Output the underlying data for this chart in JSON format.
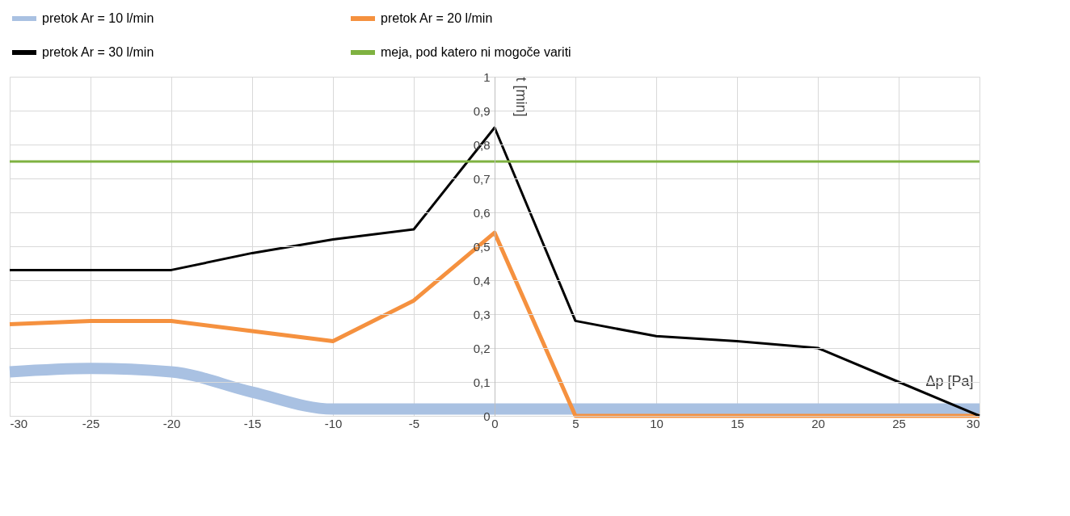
{
  "chart_data": {
    "type": "line",
    "xlabel": "Δp [Pa]",
    "ylabel": "t [min]",
    "x": [
      -30,
      -25,
      -20,
      -15,
      -10,
      -5,
      0,
      5,
      10,
      15,
      20,
      25,
      30
    ],
    "series": [
      {
        "name": "pretok Ar = 10 l/min",
        "color": "#a9c1e2",
        "values": [
          0.13,
          0.14,
          0.13,
          0.07,
          0.02,
          0.02,
          0.02,
          0.02,
          0.02,
          0.02,
          0.02,
          0.02,
          0.02
        ]
      },
      {
        "name": "pretok Ar = 20 l/min",
        "color": "#f5913f",
        "values": [
          0.27,
          0.28,
          0.28,
          0.25,
          0.22,
          0.34,
          0.54,
          0,
          0,
          0,
          0,
          0,
          0
        ]
      },
      {
        "name": "pretok Ar = 30 l/min",
        "color": "#000000",
        "values": [
          0.43,
          0.43,
          0.43,
          0.48,
          0.52,
          0.55,
          0.85,
          0.28,
          0.235,
          0.22,
          0.2,
          0.1,
          0
        ]
      },
      {
        "name": "meja, pod katero ni mogoče variti",
        "color": "#7fb241",
        "values": [
          0.75,
          0.75,
          0.75,
          0.75,
          0.75,
          0.75,
          0.75,
          0.75,
          0.75,
          0.75,
          0.75,
          0.75,
          0.75
        ]
      }
    ],
    "xlim": [
      -30,
      30
    ],
    "xticks": [
      -30,
      -25,
      -20,
      -15,
      -10,
      -5,
      0,
      5,
      10,
      15,
      20,
      25,
      30
    ],
    "ylim": [
      0,
      1
    ],
    "yticks": [
      0,
      {
        "value": 0.1,
        "label": "0,1"
      },
      {
        "value": 0.2,
        "label": "0,2"
      },
      {
        "value": 0.3,
        "label": "0,3"
      },
      {
        "value": 0.4,
        "label": "0,4"
      },
      {
        "value": 0.5,
        "label": "0,5"
      },
      {
        "value": 0.6,
        "label": "0,6"
      },
      {
        "value": 0.7,
        "label": "0,7"
      },
      {
        "value": 0.8,
        "label": "0,8"
      },
      {
        "value": 0.9,
        "label": "0,9"
      },
      1
    ],
    "grid": true,
    "legend": "top"
  }
}
